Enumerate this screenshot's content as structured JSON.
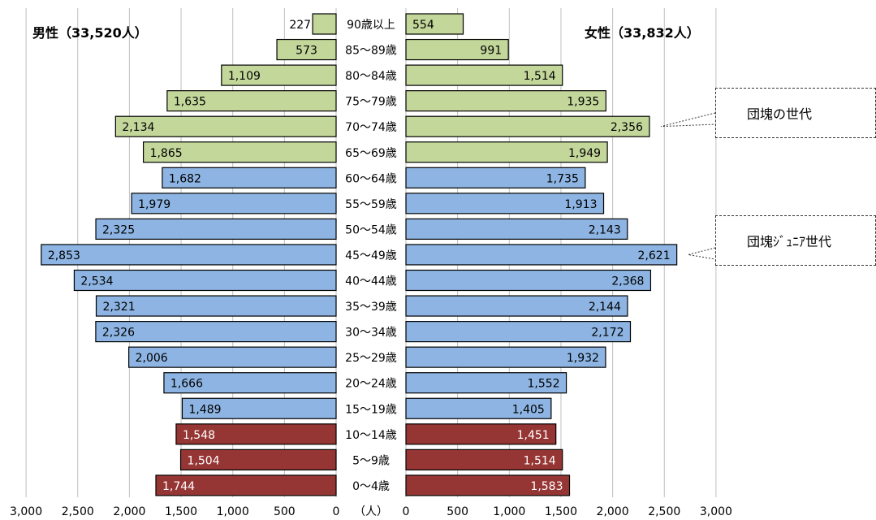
{
  "chart_data": {
    "type": "bar",
    "orientation": "horizontal-pyramid",
    "male_title": "男性（33,520人）",
    "female_title": "女性（33,832人）",
    "unit_label": "（人）",
    "x_ticks": [
      0,
      500,
      1000,
      1500,
      2000,
      2500,
      3000
    ],
    "x_tick_labels": [
      "0",
      "500",
      "1,000",
      "1,500",
      "2,000",
      "2,500",
      "3,000"
    ],
    "xlim": [
      0,
      3000
    ],
    "grid": true,
    "categories": [
      "90歳以上",
      "85～89歳",
      "80～84歳",
      "75～79歳",
      "70～74歳",
      "65～69歳",
      "60～64歳",
      "55～59歳",
      "50～54歳",
      "45～49歳",
      "40～44歳",
      "35～39歳",
      "30～34歳",
      "25～29歳",
      "20～24歳",
      "15～19歳",
      "10～14歳",
      "5～9歳",
      "0～4歳"
    ],
    "series": [
      {
        "name": "男性",
        "values": [
          227,
          573,
          1109,
          1635,
          2134,
          1865,
          1682,
          1979,
          2325,
          2853,
          2534,
          2321,
          2326,
          2006,
          1666,
          1489,
          1548,
          1504,
          1744
        ]
      },
      {
        "name": "女性",
        "values": [
          554,
          991,
          1514,
          1935,
          2356,
          1949,
          1735,
          1913,
          2143,
          2621,
          2368,
          2144,
          2172,
          1932,
          1552,
          1405,
          1451,
          1514,
          1583
        ]
      }
    ],
    "bar_groups": [
      "old",
      "old",
      "old",
      "old",
      "old",
      "old",
      "working",
      "working",
      "working",
      "working",
      "working",
      "working",
      "working",
      "working",
      "working",
      "working",
      "young",
      "young",
      "young"
    ],
    "group_colors": {
      "old": "#c4d79b",
      "working": "#8db4e2",
      "young": "#963634"
    },
    "group_label_colors": {
      "old": "#000000",
      "working": "#000000",
      "young": "#ffffff"
    },
    "annotations": [
      {
        "text": "団塊の世代",
        "points_to": "70～74歳"
      },
      {
        "text": "団塊ｼﾞｭﾆｱ世代",
        "points_to": "45～49歳"
      }
    ]
  }
}
